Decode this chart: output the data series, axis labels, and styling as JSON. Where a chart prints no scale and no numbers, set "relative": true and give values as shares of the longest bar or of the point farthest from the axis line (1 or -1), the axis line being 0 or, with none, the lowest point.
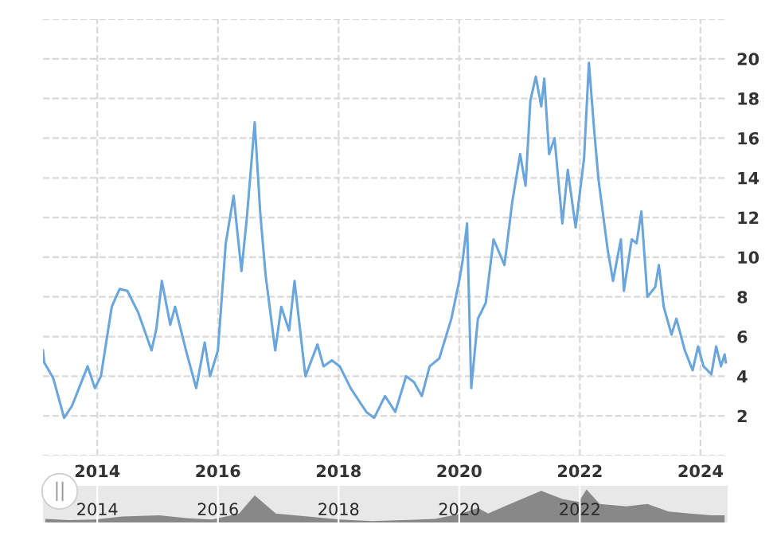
{
  "chart_data": [
    {
      "type": "line",
      "line_style": "solid",
      "marker": "none",
      "grid": true,
      "legend": false,
      "x": [
        2013.1,
        2013.12,
        2013.27,
        2013.45,
        2013.58,
        2013.84,
        2013.96,
        2014.06,
        2014.24,
        2014.37,
        2014.5,
        2014.68,
        2014.9,
        2014.98,
        2015.07,
        2015.21,
        2015.29,
        2015.47,
        2015.64,
        2015.78,
        2015.87,
        2016.0,
        2016.13,
        2016.26,
        2016.39,
        2016.48,
        2016.61,
        2016.7,
        2016.79,
        2016.95,
        2017.05,
        2017.18,
        2017.27,
        2017.36,
        2017.45,
        2017.65,
        2017.75,
        2017.89,
        2018.02,
        2018.2,
        2018.46,
        2018.59,
        2018.77,
        2018.94,
        2019.12,
        2019.25,
        2019.38,
        2019.51,
        2019.67,
        2019.87,
        2020.0,
        2020.06,
        2020.13,
        2020.2,
        2020.31,
        2020.44,
        2020.57,
        2020.75,
        2020.88,
        2021.01,
        2021.1,
        2021.18,
        2021.27,
        2021.36,
        2021.41,
        2021.49,
        2021.58,
        2021.71,
        2021.8,
        2021.93,
        2022.07,
        2022.15,
        2022.24,
        2022.31,
        2022.46,
        2022.55,
        2022.68,
        2022.73,
        2022.86,
        2022.94,
        2023.02,
        2023.12,
        2023.25,
        2023.31,
        2023.39,
        2023.52,
        2023.6,
        2023.74,
        2023.87,
        2023.96,
        2024.05,
        2024.18,
        2024.26,
        2024.34,
        2024.4,
        2024.42
      ],
      "series": [
        {
          "color": "#6aa5db",
          "values": [
            5.3,
            4.7,
            3.9,
            1.9,
            2.5,
            4.5,
            3.4,
            4.0,
            7.5,
            8.4,
            8.3,
            7.2,
            5.3,
            6.4,
            8.8,
            6.6,
            7.5,
            5.3,
            3.4,
            5.7,
            4.0,
            5.3,
            10.7,
            13.1,
            9.3,
            12.0,
            16.8,
            12.3,
            9.1,
            5.3,
            7.5,
            6.3,
            8.8,
            6.4,
            4.0,
            5.6,
            4.5,
            4.8,
            4.5,
            3.4,
            2.2,
            1.9,
            3.0,
            2.2,
            4.0,
            3.7,
            3.0,
            4.5,
            4.9,
            6.9,
            8.8,
            9.9,
            11.7,
            3.4,
            6.9,
            7.7,
            10.9,
            9.6,
            12.8,
            15.2,
            13.6,
            17.9,
            19.1,
            17.6,
            19.0,
            15.2,
            16.0,
            11.7,
            14.4,
            11.5,
            15.0,
            19.8,
            16.3,
            13.9,
            10.4,
            8.8,
            10.9,
            8.3,
            10.9,
            10.7,
            12.3,
            8.0,
            8.5,
            9.6,
            7.5,
            6.1,
            6.9,
            5.3,
            4.3,
            5.5,
            4.5,
            4.1,
            5.5,
            4.5,
            5.1,
            4.7
          ]
        }
      ],
      "xlim": [
        2013.1,
        2024.45
      ],
      "xticks": [
        2014,
        2016,
        2018,
        2020,
        2022,
        2024
      ],
      "ylim": [
        0,
        22
      ],
      "yticks": [
        {
          "value": 0,
          "label": null
        },
        2,
        4,
        6,
        8,
        10,
        12,
        14,
        16,
        18,
        20,
        {
          "value": 22,
          "label": null
        }
      ]
    },
    {
      "type": "area",
      "relative": true,
      "grid": "x",
      "tick_labels": "x",
      "x": [
        2013.14,
        2013.53,
        2013.97,
        2014.41,
        2015.03,
        2015.47,
        2015.91,
        2016.35,
        2016.61,
        2016.96,
        2017.49,
        2018.02,
        2018.55,
        2019.07,
        2019.6,
        2020.04,
        2020.31,
        2020.48,
        2020.75,
        2021.18,
        2021.36,
        2021.71,
        2021.98,
        2022.11,
        2022.33,
        2022.77,
        2023.12,
        2023.47,
        2023.82,
        2024.18,
        2024.4
      ],
      "series": [
        {
          "color": "#888888",
          "values": [
            0.11,
            0.07,
            0.09,
            0.18,
            0.22,
            0.13,
            0.09,
            0.27,
            0.82,
            0.27,
            0.18,
            0.09,
            0.04,
            0.07,
            0.11,
            0.27,
            0.44,
            0.27,
            0.49,
            0.82,
            0.96,
            0.71,
            0.62,
            1,
            0.56,
            0.49,
            0.56,
            0.33,
            0.27,
            0.22,
            0.22
          ]
        }
      ],
      "xlim": [
        2013.1,
        2024.45
      ],
      "xticks": [
        2014,
        2016,
        2018,
        2020,
        2022
      ]
    }
  ]
}
